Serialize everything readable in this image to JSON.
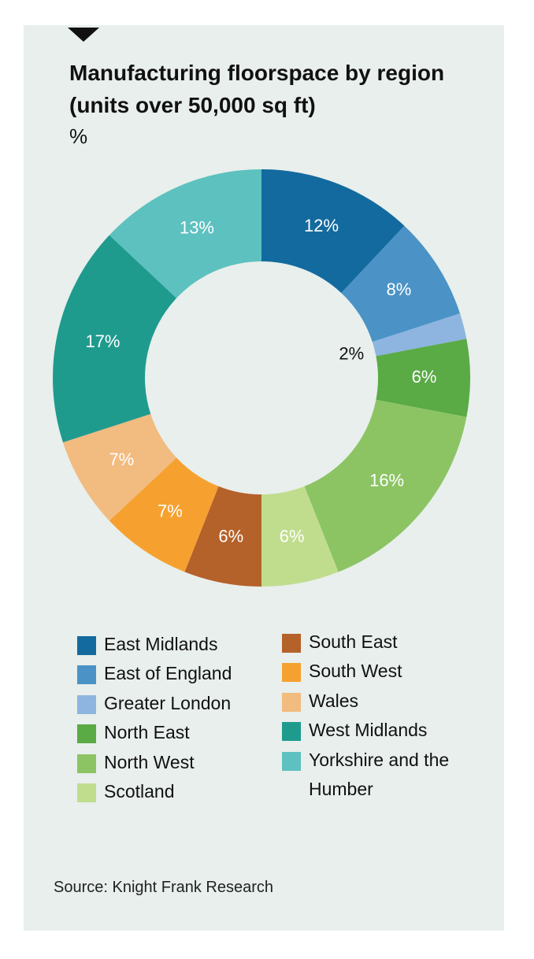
{
  "chart_data": {
    "type": "donut",
    "title": "Manufacturing floorspace by region (units over 50,000 sq ft)",
    "subtitle": "%",
    "categories": [
      "East Midlands",
      "East of England",
      "Greater London",
      "North East",
      "North West",
      "Scotland",
      "South East",
      "South West",
      "Wales",
      "West Midlands",
      "Yorkshire and the Humber"
    ],
    "values": [
      12,
      8,
      2,
      6,
      16,
      6,
      6,
      7,
      7,
      17,
      13
    ],
    "value_labels": [
      "12%",
      "8%",
      "2%",
      "6%",
      "16%",
      "6%",
      "6%",
      "7%",
      "7%",
      "17%",
      "13%"
    ],
    "colors": [
      "#136a9f",
      "#4b93c6",
      "#8db5e0",
      "#5aaa46",
      "#8cc464",
      "#c0dd8e",
      "#b5612a",
      "#f6a12f",
      "#f2bb80",
      "#1f9b8e",
      "#5dc1bf"
    ],
    "source": "Source: Knight Frank Research"
  }
}
